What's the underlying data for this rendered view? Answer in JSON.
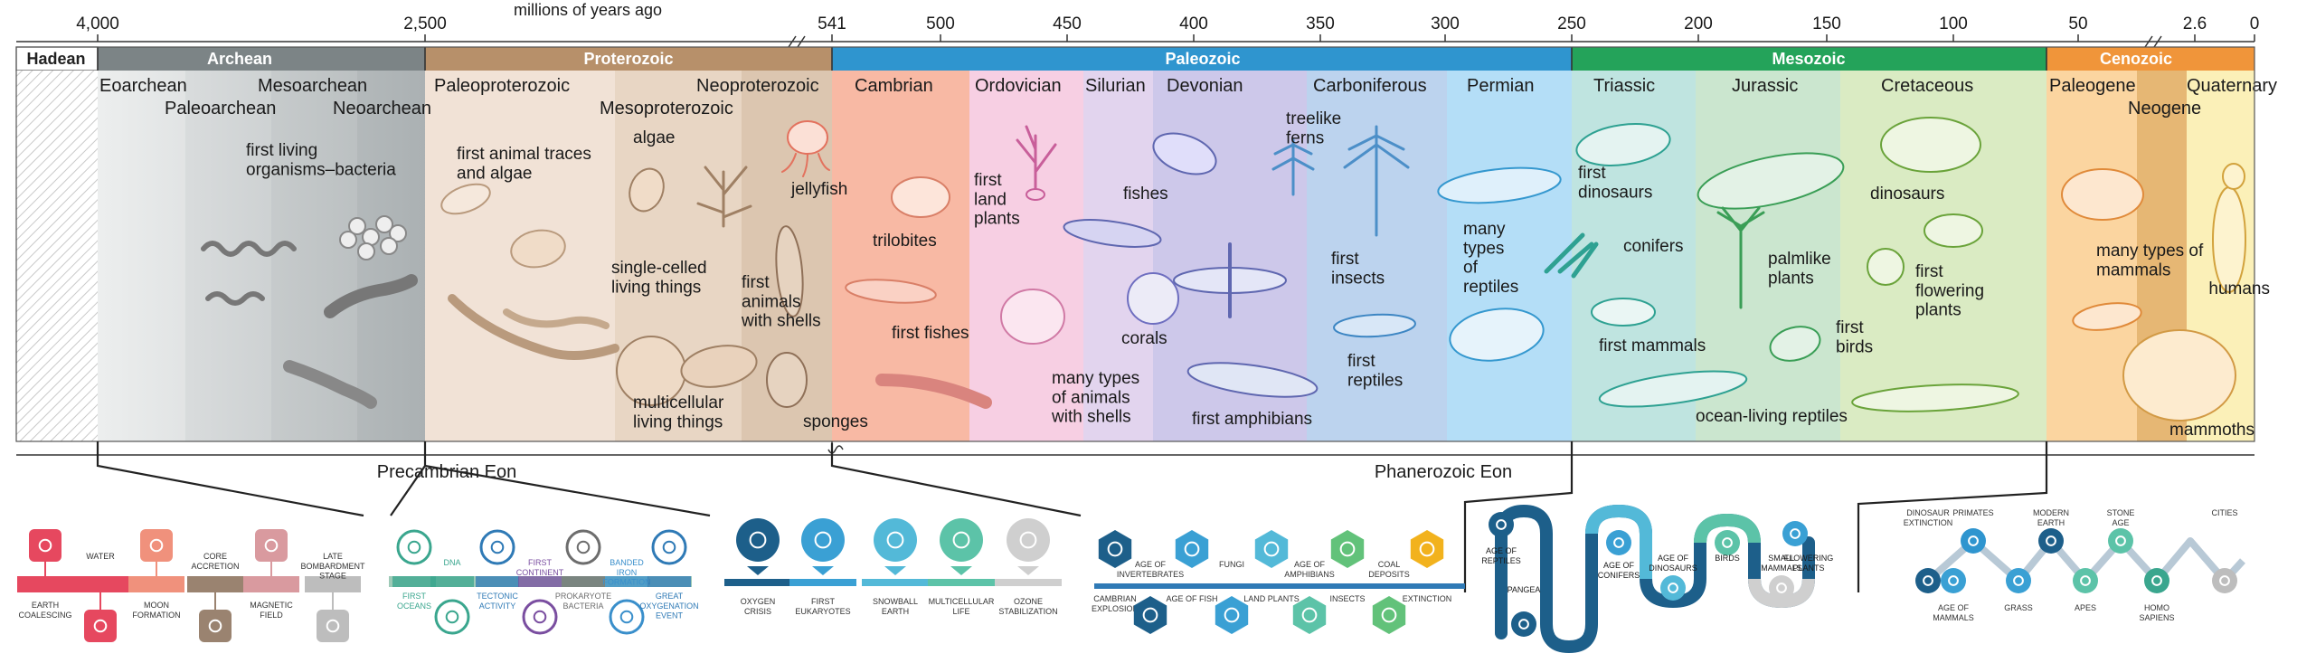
{
  "axis": {
    "title": "millions of years ago",
    "ticks": [
      "4,000",
      "2,500",
      "541",
      "500",
      "450",
      "400",
      "350",
      "300",
      "250",
      "200",
      "150",
      "100",
      "50",
      "2.6",
      "0"
    ]
  },
  "eons": [
    {
      "label": "Hadean",
      "color": "#ffffff",
      "text_color": "#222222"
    },
    {
      "label": "Archean",
      "color": "#7c8486",
      "text_color": "#ffffff"
    },
    {
      "label": "Proterozoic",
      "color": "#b7906a",
      "text_color": "#ffffff"
    },
    {
      "label": "Paleozoic",
      "color": "#2f95cf",
      "text_color": "#ffffff"
    },
    {
      "label": "Mesozoic",
      "color": "#24a35a",
      "text_color": "#ffffff"
    },
    {
      "label": "Cenozoic",
      "color": "#f0953a",
      "text_color": "#ffffff"
    }
  ],
  "eras": [
    {
      "label": "Eoarchean",
      "color": "#e3e6e6"
    },
    {
      "label": "Paleoarchean",
      "color": "#d0d4d5"
    },
    {
      "label": "Mesoarchean",
      "color": "#c0c5c6"
    },
    {
      "label": "Neoarchean",
      "color": "#aeb4b6"
    },
    {
      "label": "Paleoproterozoic",
      "color": "#f1e2d6"
    },
    {
      "label": "Mesoproterozoic",
      "color": "#e8d6c4"
    },
    {
      "label": "Neoproterozoic",
      "color": "#dcc6b0"
    },
    {
      "label": "Cambrian",
      "color": "#f8b9a4"
    },
    {
      "label": "Ordovician",
      "color": "#f7cfe3"
    },
    {
      "label": "Silurian",
      "color": "#e2d4ee"
    },
    {
      "label": "Devonian",
      "color": "#cdc8ea"
    },
    {
      "label": "Carboniferous",
      "color": "#bcd3ee"
    },
    {
      "label": "Permian",
      "color": "#b4def7"
    },
    {
      "label": "Triassic",
      "color": "#bfe4e0"
    },
    {
      "label": "Jurassic",
      "color": "#cbe6cf"
    },
    {
      "label": "Cretaceous",
      "color": "#daebc3"
    },
    {
      "label": "Paleogene",
      "color": "#fbd5a0"
    },
    {
      "label": "Neogene",
      "color": "#e6b774"
    },
    {
      "label": "Quaternary",
      "color": "#fbf0b8"
    }
  ],
  "life_labels": [
    "first living\norganisms–bacteria",
    "first animal traces\nand algae",
    "algae",
    "single-celled\nliving things",
    "multicellular\nliving things",
    "first\nanimals\nwith shells",
    "jellyfish",
    "sponges",
    "trilobites",
    "first fishes",
    "first\nland\nplants",
    "fishes",
    "many types\nof animals\nwith shells",
    "corals",
    "treelike\nferns",
    "first amphibians",
    "first\ninsects",
    "first\nreptiles",
    "many\ntypes\nof\nreptiles",
    "first\ndinosaurs",
    "conifers",
    "first mammals",
    "palmlike\nplants",
    "ocean-living reptiles",
    "dinosaurs",
    "first\nflowering\nplants",
    "first\nbirds",
    "many types of\nmammals",
    "humans",
    "mammoths"
  ],
  "eon_groups": [
    "Precambrian Eon",
    "Phanerozoic  Eon"
  ],
  "precambrian_events": [
    {
      "label": "EARTH\nCOALESCING",
      "color": "#e6485f",
      "icon": "earth-icon"
    },
    {
      "label": "WATER",
      "color": "#e6485f",
      "icon": "water-drop-icon"
    },
    {
      "label": "MOON\nFORMATION",
      "color": "#f0917c",
      "icon": "moon-icon"
    },
    {
      "label": "CORE\nACCRETION",
      "color": "#9a8370",
      "icon": "core-icon"
    },
    {
      "label": "MAGNETIC\nFIELD",
      "color": "#d99a9f",
      "icon": "magnet-icon"
    },
    {
      "label": "LATE\nBOMBARDMENT\nSTAGE",
      "color": "#bdbdbd",
      "icon": "meteor-icon"
    }
  ],
  "archean_proterozoic_events": [
    {
      "label": "FIRST\nOCEANS",
      "color": "#3aa68e",
      "icon": "ocean-icon"
    },
    {
      "label": "DNA",
      "color": "#3aa68e",
      "icon": "dna-icon"
    },
    {
      "label": "TECTONIC\nACTIVITY",
      "color": "#2f7ab6",
      "icon": "tectonic-icon"
    },
    {
      "label": "FIRST\nCONTINENT",
      "color": "#7a4ea0",
      "icon": "continent-icon"
    },
    {
      "label": "PROKARYOTE\nBACTERIA",
      "color": "#6d6d6d",
      "icon": "bacteria-icon"
    },
    {
      "label": "BANDED\nIRON\nFORMATION",
      "color": "#3a8fcb",
      "icon": "iron-icon"
    },
    {
      "label": "GREAT\nOXYGENATION\nEVENT",
      "color": "#2f7ab6",
      "icon": "oxygen-icon"
    }
  ],
  "proterozoic_events": [
    {
      "label": "OXYGEN\nCRISIS",
      "color": "#1d5f8a",
      "icon": "skull-icon"
    },
    {
      "label": "FIRST\nEUKARYOTES",
      "color": "#3aa0d4",
      "icon": "cell-icon"
    },
    {
      "label": "SNOWBALL\nEARTH",
      "color": "#53b9d8",
      "icon": "snowflake-icon"
    },
    {
      "label": "MULTICELLULAR\nLIFE",
      "color": "#5cc3a8",
      "icon": "cells-icon"
    },
    {
      "label": "OZONE\nSTABILIZATION",
      "color": "#cfcfcf",
      "icon": "ozone-icon"
    }
  ],
  "paleozoic_events": [
    {
      "label": "CAMBRIAN\nEXPLOSION",
      "color": "#1d5f8a",
      "icon": "explosion-icon"
    },
    {
      "label": "AGE OF\nINVERTEBRATES",
      "color": "#1d5f8a",
      "icon": "shell-icon"
    },
    {
      "label": "AGE OF FISH",
      "color": "#3aa0d4",
      "icon": "fish-icon"
    },
    {
      "label": "FUNGI",
      "color": "#3aa0d4",
      "icon": "mushroom-icon"
    },
    {
      "label": "LAND PLANTS",
      "color": "#53b9d8",
      "icon": "plant-icon"
    },
    {
      "label": "AGE OF\nAMPHIBIANS",
      "color": "#5cc3a8",
      "icon": "frog-icon"
    },
    {
      "label": "INSECTS",
      "color": "#62c27a",
      "icon": "insect-icon"
    },
    {
      "label": "COAL\nDEPOSITS",
      "color": "#62c27a",
      "icon": "coal-icon"
    },
    {
      "label": "EXTINCTION",
      "color": "#f2b21d",
      "icon": "fire-icon"
    }
  ],
  "mesozoic_events": [
    {
      "label": "AGE OF\nREPTILES",
      "color": "#1d5f8a",
      "icon": "lizard-icon"
    },
    {
      "label": "PANGEA",
      "color": "#1d5f8a",
      "icon": "pangea-icon"
    },
    {
      "label": "AGE OF\nCONIFERS",
      "color": "#3aa0d4",
      "icon": "conifer-icon"
    },
    {
      "label": "AGE OF\nDINOSAURS",
      "color": "#53b9d8",
      "icon": "dinosaur-icon"
    },
    {
      "label": "BIRDS",
      "color": "#5cc3a8",
      "icon": "bird-icon"
    },
    {
      "label": "SMALL\nMAMMALS",
      "color": "#cfcfcf",
      "icon": "mouse-icon"
    },
    {
      "label": "FLOWERING\nPLANTS",
      "color": "#3aa0d4",
      "icon": "flower-icon"
    }
  ],
  "cenozoic_events": [
    {
      "label": "DINOSAUR\nEXTINCTION",
      "color": "#1d5f8a",
      "icon": "bone-icon"
    },
    {
      "label": "AGE OF\nMAMMALS",
      "color": "#3aa0d4",
      "icon": "rabbit-icon"
    },
    {
      "label": "PRIMATES",
      "color": "#2f95cf",
      "icon": "primate-icon"
    },
    {
      "label": "GRASS",
      "color": "#3aa0d4",
      "icon": "grass-icon"
    },
    {
      "label": "MODERN\nEARTH",
      "color": "#1d5f8a",
      "icon": "globe-icon"
    },
    {
      "label": "APES",
      "color": "#5cc3a8",
      "icon": "ape-icon"
    },
    {
      "label": "STONE\nAGE",
      "color": "#5cc3a8",
      "icon": "stone-tool-icon"
    },
    {
      "label": "HOMO\nSAPIENS",
      "color": "#3aa68e",
      "icon": "human-head-icon"
    },
    {
      "label": "CITIES",
      "color": "#bdbdbd",
      "icon": "city-icon"
    }
  ]
}
